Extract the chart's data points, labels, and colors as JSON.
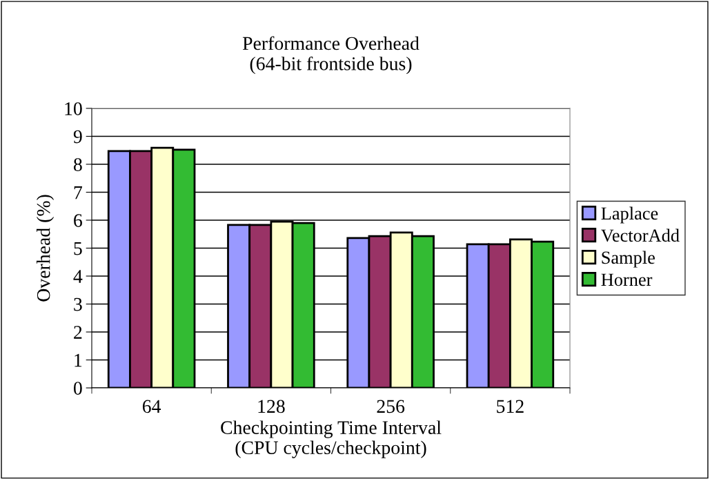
{
  "chart_data": {
    "type": "bar",
    "title": "Performance Overhead\n(64-bit frontside bus)",
    "xlabel": "Checkpointing Time Interval\n(CPU cycles/checkpoint)",
    "ylabel": "Overhead (%)",
    "categories": [
      "64",
      "128",
      "256",
      "512"
    ],
    "series": [
      {
        "name": "Laplace",
        "color": "#9999ff",
        "values": [
          8.47,
          5.83,
          5.36,
          5.14
        ]
      },
      {
        "name": "VectorAdd",
        "color": "#993366",
        "values": [
          8.47,
          5.83,
          5.43,
          5.14
        ]
      },
      {
        "name": "Sample",
        "color": "#ffffcc",
        "values": [
          8.59,
          5.95,
          5.56,
          5.31
        ]
      },
      {
        "name": "Horner",
        "color": "#33bb33",
        "values": [
          8.52,
          5.9,
          5.43,
          5.23
        ]
      }
    ],
    "ylim": [
      0,
      10
    ],
    "yticks": [
      0,
      1,
      2,
      3,
      4,
      5,
      6,
      7,
      8,
      9,
      10
    ],
    "grid": "y",
    "legend": "right"
  }
}
